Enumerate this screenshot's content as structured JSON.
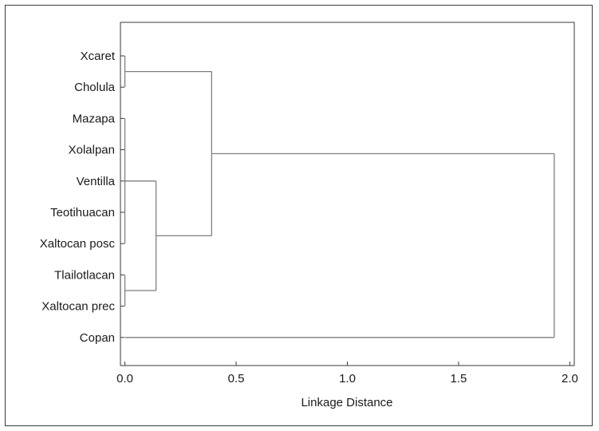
{
  "chart_data": {
    "type": "dendrogram",
    "title": "",
    "xlabel": "Linkage Distance",
    "ylabel": "",
    "xlim": [
      -0.02,
      2.02
    ],
    "x_ticks": [
      0.0,
      0.5,
      1.0,
      1.5,
      2.0
    ],
    "x_tick_labels": [
      "0.0",
      "0.5",
      "1.0",
      "1.5",
      "2.0"
    ],
    "leaves": [
      "Xcaret",
      "Cholula",
      "Mazapa",
      "Xolalpan",
      "Ventilla",
      "Teotihuacan",
      "Xaltocan posc",
      "Tlailotlacan",
      "Xaltocan prec",
      "Copan"
    ],
    "merges": [
      {
        "id": "c1",
        "children": [
          "Xcaret",
          "Cholula"
        ],
        "distance": 0.0
      },
      {
        "id": "c2",
        "children": [
          "Mazapa",
          "Xolalpan",
          "Ventilla",
          "Teotihuacan",
          "Xaltocan posc"
        ],
        "distance": 0.0
      },
      {
        "id": "c3",
        "children": [
          "Tlailotlacan",
          "Xaltocan prec"
        ],
        "distance": 0.0
      },
      {
        "id": "c4",
        "children": [
          "c2",
          "c3"
        ],
        "distance": 0.14
      },
      {
        "id": "c5",
        "children": [
          "c1",
          "c4"
        ],
        "distance": 0.39
      },
      {
        "id": "c6",
        "children": [
          "c5",
          "Copan"
        ],
        "distance": 1.93
      }
    ],
    "grid": false,
    "legend": "none",
    "line_color": "#7f7f7f"
  }
}
